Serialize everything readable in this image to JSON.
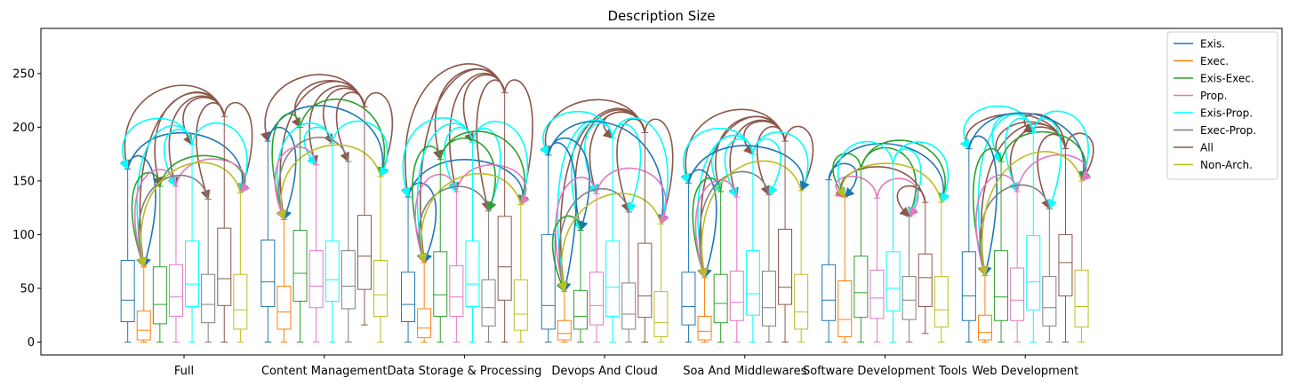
{
  "chart_data": {
    "type": "boxplot",
    "title": "Description Size",
    "xlabel": "",
    "ylabel": "",
    "ylim": [
      -12,
      292
    ],
    "yticks": [
      0,
      50,
      100,
      150,
      200,
      250
    ],
    "grid": false,
    "legend_placement": "top-right",
    "categories": [
      "Full",
      "Content Management",
      "Data Storage & Processing",
      "Devops And Cloud",
      "Soa And Middlewares",
      "Software Development Tools",
      "Web Development"
    ],
    "series": [
      {
        "name": "Exis.",
        "color": "#1f77b4",
        "boxes": [
          {
            "whislo": 0,
            "q1": 19,
            "med": 39,
            "q3": 76,
            "whishi": 161
          },
          {
            "whislo": 0,
            "q1": 33,
            "med": 56,
            "q3": 95,
            "whishi": 187
          },
          {
            "whislo": 0,
            "q1": 19,
            "med": 35,
            "q3": 65,
            "whishi": 135
          },
          {
            "whislo": 0,
            "q1": 12,
            "med": 34,
            "q3": 100,
            "whishi": 174
          },
          {
            "whislo": 0,
            "q1": 16,
            "med": 33,
            "q3": 65,
            "whishi": 148
          },
          {
            "whislo": 0,
            "q1": 20,
            "med": 39,
            "q3": 72,
            "whishi": 151
          },
          {
            "whislo": 0,
            "q1": 20,
            "med": 43,
            "q3": 84,
            "whishi": 180
          }
        ]
      },
      {
        "name": "Exec.",
        "color": "#ff7f0e",
        "boxes": [
          {
            "whislo": 0,
            "q1": 2,
            "med": 11,
            "q3": 29,
            "whishi": 70
          },
          {
            "whislo": 0,
            "q1": 12,
            "med": 28,
            "q3": 52,
            "whishi": 114
          },
          {
            "whislo": 0,
            "q1": 4,
            "med": 13,
            "q3": 31,
            "whishi": 74
          },
          {
            "whislo": 0,
            "q1": 2,
            "med": 8,
            "q3": 20,
            "whishi": 47
          },
          {
            "whislo": 0,
            "q1": 2,
            "med": 10,
            "q3": 24,
            "whishi": 60
          },
          {
            "whislo": 0,
            "q1": 5,
            "med": 21,
            "q3": 57,
            "whishi": 135
          },
          {
            "whislo": 0,
            "q1": 2,
            "med": 9,
            "q3": 25,
            "whishi": 62
          }
        ]
      },
      {
        "name": "Exis-Exec.",
        "color": "#2ca02c",
        "boxes": [
          {
            "whislo": 0,
            "q1": 17,
            "med": 35,
            "q3": 70,
            "whishi": 145
          },
          {
            "whislo": 0,
            "q1": 38,
            "med": 64,
            "q3": 104,
            "whishi": 200
          },
          {
            "whislo": 0,
            "q1": 24,
            "med": 44,
            "q3": 84,
            "whishi": 170
          },
          {
            "whislo": 0,
            "q1": 12,
            "med": 24,
            "q3": 48,
            "whishi": 104
          },
          {
            "whislo": 0,
            "q1": 18,
            "med": 36,
            "q3": 63,
            "whishi": 140
          },
          {
            "whislo": 0,
            "q1": 23,
            "med": 46,
            "q3": 80,
            "whishi": 161
          },
          {
            "whislo": 0,
            "q1": 20,
            "med": 42,
            "q3": 85,
            "whishi": 168
          }
        ]
      },
      {
        "name": "Prop.",
        "color": "#e377c2",
        "boxes": [
          {
            "whislo": 0,
            "q1": 24,
            "med": 42,
            "q3": 72,
            "whishi": 145
          },
          {
            "whislo": 0,
            "q1": 32,
            "med": 52,
            "q3": 85,
            "whishi": 165
          },
          {
            "whislo": 0,
            "q1": 24,
            "med": 42,
            "q3": 71,
            "whishi": 140
          },
          {
            "whislo": 0,
            "q1": 16,
            "med": 34,
            "q3": 65,
            "whishi": 138
          },
          {
            "whislo": 0,
            "q1": 20,
            "med": 37,
            "q3": 66,
            "whishi": 135
          },
          {
            "whislo": 0,
            "q1": 22,
            "med": 41,
            "q3": 67,
            "whishi": 134
          },
          {
            "whislo": 0,
            "q1": 20,
            "med": 39,
            "q3": 69,
            "whishi": 140
          }
        ]
      },
      {
        "name": "Exis-Prop.",
        "color": "#00ffff",
        "boxes": [
          {
            "whislo": 0,
            "q1": 33,
            "med": 54,
            "q3": 94,
            "whishi": 184
          },
          {
            "whislo": 0,
            "q1": 38,
            "med": 58,
            "q3": 94,
            "whishi": 185
          },
          {
            "whislo": 0,
            "q1": 33,
            "med": 54,
            "q3": 94,
            "whishi": 186
          },
          {
            "whislo": 0,
            "q1": 24,
            "med": 51,
            "q3": 94,
            "whishi": 190
          },
          {
            "whislo": 0,
            "q1": 25,
            "med": 45,
            "q3": 85,
            "whishi": 175
          },
          {
            "whislo": 0,
            "q1": 29,
            "med": 50,
            "q3": 84,
            "whishi": 166
          },
          {
            "whislo": 0,
            "q1": 30,
            "med": 56,
            "q3": 99,
            "whishi": 195
          }
        ]
      },
      {
        "name": "Exec-Prop.",
        "color": "#7f7f7f",
        "boxes": [
          {
            "whislo": 0,
            "q1": 18,
            "med": 35,
            "q3": 63,
            "whishi": 133
          },
          {
            "whislo": 0,
            "q1": 31,
            "med": 52,
            "q3": 85,
            "whishi": 168
          },
          {
            "whislo": 0,
            "q1": 15,
            "med": 32,
            "q3": 58,
            "whishi": 122
          },
          {
            "whislo": 0,
            "q1": 12,
            "med": 26,
            "q3": 55,
            "whishi": 121
          },
          {
            "whislo": 0,
            "q1": 15,
            "med": 32,
            "q3": 66,
            "whishi": 137
          },
          {
            "whislo": 0,
            "q1": 21,
            "med": 39,
            "q3": 61,
            "whishi": 117
          },
          {
            "whislo": 0,
            "q1": 15,
            "med": 32,
            "q3": 61,
            "whishi": 124
          }
        ]
      },
      {
        "name": "All",
        "color": "#8c564b",
        "boxes": [
          {
            "whislo": 0,
            "q1": 34,
            "med": 59,
            "q3": 106,
            "whishi": 210
          },
          {
            "whislo": 16,
            "q1": 49,
            "med": 80,
            "q3": 118,
            "whishi": 219
          },
          {
            "whislo": 0,
            "q1": 39,
            "med": 70,
            "q3": 117,
            "whishi": 232
          },
          {
            "whislo": 0,
            "q1": 23,
            "med": 43,
            "q3": 92,
            "whishi": 195
          },
          {
            "whislo": 0,
            "q1": 35,
            "med": 51,
            "q3": 105,
            "whishi": 187
          },
          {
            "whislo": 8,
            "q1": 33,
            "med": 60,
            "q3": 82,
            "whishi": 130
          },
          {
            "whislo": 0,
            "q1": 43,
            "med": 74,
            "q3": 100,
            "whishi": 180
          }
        ]
      },
      {
        "name": "Non-Arch.",
        "color": "#bcbd22",
        "boxes": [
          {
            "whislo": 0,
            "q1": 12,
            "med": 30,
            "q3": 63,
            "whishi": 139
          },
          {
            "whislo": 0,
            "q1": 24,
            "med": 44,
            "q3": 76,
            "whishi": 154
          },
          {
            "whislo": 0,
            "q1": 11,
            "med": 26,
            "q3": 58,
            "whishi": 128
          },
          {
            "whislo": 0,
            "q1": 5,
            "med": 18,
            "q3": 47,
            "whishi": 110
          },
          {
            "whislo": 0,
            "q1": 12,
            "med": 28,
            "q3": 63,
            "whishi": 141
          },
          {
            "whislo": 0,
            "q1": 14,
            "med": 30,
            "q3": 61,
            "whishi": 130
          },
          {
            "whislo": 0,
            "q1": 14,
            "med": 33,
            "q3": 67,
            "whishi": 150
          }
        ]
      }
    ],
    "arrow_color": "#8c564b",
    "arrows": [
      {
        "category": 0,
        "from": 6,
        "to": [
          0,
          1,
          2,
          3,
          4,
          5,
          7
        ]
      },
      {
        "category": 0,
        "from": 0,
        "to": [
          1,
          7
        ]
      },
      {
        "category": 0,
        "from": 4,
        "to": [
          0,
          1,
          3,
          7
        ]
      },
      {
        "category": 0,
        "from": 2,
        "to": [
          1,
          7
        ]
      },
      {
        "category": 0,
        "from": 3,
        "to": [
          1,
          7
        ]
      },
      {
        "category": 0,
        "from": 5,
        "to": [
          1
        ]
      },
      {
        "category": 0,
        "from": 7,
        "to": [
          1
        ]
      },
      {
        "category": 1,
        "from": 6,
        "to": [
          0,
          1,
          2,
          3,
          4,
          5,
          7
        ]
      },
      {
        "category": 1,
        "from": 0,
        "to": [
          1,
          7
        ]
      },
      {
        "category": 1,
        "from": 2,
        "to": [
          1,
          7
        ]
      },
      {
        "category": 1,
        "from": 4,
        "to": [
          1,
          3,
          7
        ]
      },
      {
        "category": 1,
        "from": 5,
        "to": [
          1
        ]
      },
      {
        "category": 1,
        "from": 3,
        "to": [
          1
        ]
      },
      {
        "category": 1,
        "from": 7,
        "to": [
          1
        ]
      },
      {
        "category": 2,
        "from": 6,
        "to": [
          0,
          1,
          2,
          3,
          4,
          5,
          7
        ]
      },
      {
        "category": 2,
        "from": 0,
        "to": [
          1,
          7
        ]
      },
      {
        "category": 2,
        "from": 4,
        "to": [
          0,
          1,
          3,
          5,
          7
        ]
      },
      {
        "category": 2,
        "from": 2,
        "to": [
          1,
          5,
          7
        ]
      },
      {
        "category": 2,
        "from": 3,
        "to": [
          1,
          7
        ]
      },
      {
        "category": 2,
        "from": 5,
        "to": [
          1
        ]
      },
      {
        "category": 2,
        "from": 7,
        "to": [
          1
        ]
      },
      {
        "category": 3,
        "from": 6,
        "to": [
          0,
          1,
          2,
          3,
          4,
          5,
          7
        ]
      },
      {
        "category": 3,
        "from": 4,
        "to": [
          0,
          1,
          2,
          3,
          5,
          7
        ]
      },
      {
        "category": 3,
        "from": 0,
        "to": [
          1,
          2,
          7
        ]
      },
      {
        "category": 3,
        "from": 3,
        "to": [
          1,
          7
        ]
      },
      {
        "category": 3,
        "from": 2,
        "to": [
          1
        ]
      },
      {
        "category": 3,
        "from": 5,
        "to": [
          1
        ]
      },
      {
        "category": 3,
        "from": 7,
        "to": [
          1
        ]
      },
      {
        "category": 4,
        "from": 6,
        "to": [
          0,
          1,
          2,
          3,
          4,
          5,
          7
        ]
      },
      {
        "category": 4,
        "from": 4,
        "to": [
          0,
          1,
          2,
          3,
          5,
          7
        ]
      },
      {
        "category": 4,
        "from": 0,
        "to": [
          1,
          7
        ]
      },
      {
        "category": 4,
        "from": 2,
        "to": [
          1
        ]
      },
      {
        "category": 4,
        "from": 3,
        "to": [
          1
        ]
      },
      {
        "category": 4,
        "from": 5,
        "to": [
          1
        ]
      },
      {
        "category": 4,
        "from": 7,
        "to": [
          1
        ]
      },
      {
        "category": 5,
        "from": 0,
        "to": [
          1,
          7
        ]
      },
      {
        "category": 5,
        "from": 2,
        "to": [
          1,
          5,
          7
        ]
      },
      {
        "category": 5,
        "from": 4,
        "to": [
          1,
          5,
          7
        ]
      },
      {
        "category": 5,
        "from": 3,
        "to": [
          1,
          5
        ]
      },
      {
        "category": 5,
        "from": 6,
        "to": [
          1,
          5
        ]
      },
      {
        "category": 5,
        "from": 7,
        "to": [
          1
        ]
      },
      {
        "category": 6,
        "from": 6,
        "to": [
          0,
          1,
          2,
          3,
          4,
          5,
          7
        ]
      },
      {
        "category": 6,
        "from": 4,
        "to": [
          0,
          1,
          2,
          3,
          5,
          7
        ]
      },
      {
        "category": 6,
        "from": 0,
        "to": [
          1,
          7
        ]
      },
      {
        "category": 6,
        "from": 2,
        "to": [
          1,
          7
        ]
      },
      {
        "category": 6,
        "from": 3,
        "to": [
          1,
          7
        ]
      },
      {
        "category": 6,
        "from": 5,
        "to": [
          1
        ]
      },
      {
        "category": 6,
        "from": 7,
        "to": [
          1
        ]
      }
    ]
  }
}
